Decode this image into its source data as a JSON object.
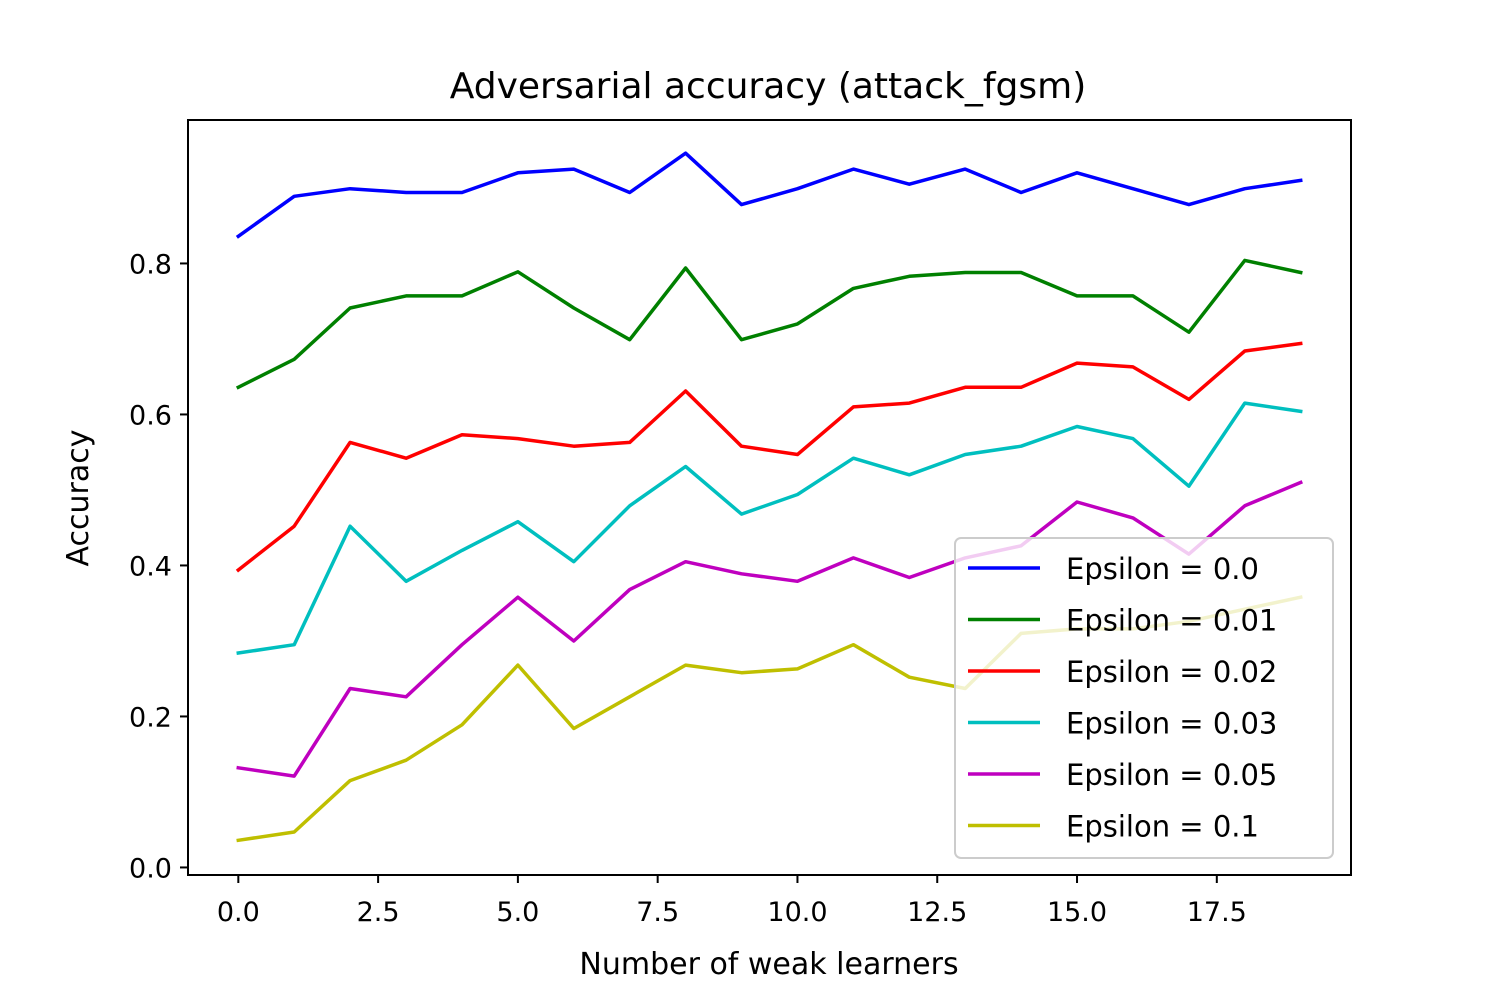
{
  "chart_data": {
    "type": "line",
    "title": "Adversarial accuracy (attack_fgsm)",
    "xlabel": "Number of weak learners",
    "ylabel": "Accuracy",
    "xlim": [
      -0.9,
      19.9
    ],
    "ylim": [
      -0.01,
      0.99
    ],
    "xticks": [
      0.0,
      2.5,
      5.0,
      7.5,
      10.0,
      12.5,
      15.0,
      17.5
    ],
    "xtick_labels": [
      "0.0",
      "2.5",
      "5.0",
      "7.5",
      "10.0",
      "12.5",
      "15.0",
      "17.5"
    ],
    "yticks": [
      0.0,
      0.2,
      0.4,
      0.6,
      0.8
    ],
    "ytick_labels": [
      "0.0",
      "0.2",
      "0.4",
      "0.6",
      "0.8"
    ],
    "grid": false,
    "legend_position": "lower-right",
    "x": [
      0,
      1,
      2,
      3,
      4,
      5,
      6,
      7,
      8,
      9,
      10,
      11,
      12,
      13,
      14,
      15,
      16,
      17,
      18,
      19
    ],
    "series": [
      {
        "name": "Epsilon = 0.0",
        "color": "#0000ff",
        "values": [
          0.836,
          0.889,
          0.899,
          0.894,
          0.894,
          0.92,
          0.925,
          0.894,
          0.946,
          0.878,
          0.899,
          0.925,
          0.905,
          0.925,
          0.894,
          0.92,
          0.899,
          0.878,
          0.899,
          0.91
        ]
      },
      {
        "name": "Epsilon = 0.01",
        "color": "#008000",
        "values": [
          0.636,
          0.673,
          0.741,
          0.757,
          0.757,
          0.789,
          0.741,
          0.699,
          0.794,
          0.699,
          0.72,
          0.767,
          0.783,
          0.788,
          0.788,
          0.757,
          0.757,
          0.709,
          0.804,
          0.788
        ]
      },
      {
        "name": "Epsilon = 0.02",
        "color": "#ff0000",
        "values": [
          0.394,
          0.452,
          0.563,
          0.542,
          0.573,
          0.568,
          0.558,
          0.563,
          0.631,
          0.558,
          0.547,
          0.61,
          0.615,
          0.636,
          0.636,
          0.668,
          0.663,
          0.62,
          0.684,
          0.694
        ]
      },
      {
        "name": "Epsilon = 0.03",
        "color": "#00bfbf",
        "values": [
          0.284,
          0.295,
          0.452,
          0.379,
          0.42,
          0.458,
          0.405,
          0.479,
          0.531,
          0.468,
          0.494,
          0.542,
          0.52,
          0.547,
          0.558,
          0.584,
          0.568,
          0.505,
          0.615,
          0.604
        ]
      },
      {
        "name": "Epsilon = 0.05",
        "color": "#bf00bf",
        "values": [
          0.132,
          0.121,
          0.237,
          0.226,
          0.295,
          0.358,
          0.3,
          0.368,
          0.405,
          0.389,
          0.379,
          0.41,
          0.384,
          0.41,
          0.426,
          0.484,
          0.463,
          0.415,
          0.479,
          0.51
        ]
      },
      {
        "name": "Epsilon = 0.1",
        "color": "#bfbf00",
        "values": [
          0.036,
          0.047,
          0.115,
          0.142,
          0.189,
          0.268,
          0.184,
          0.226,
          0.268,
          0.258,
          0.263,
          0.295,
          0.252,
          0.237,
          0.31,
          0.316,
          0.316,
          0.326,
          0.342,
          0.358
        ]
      }
    ]
  }
}
